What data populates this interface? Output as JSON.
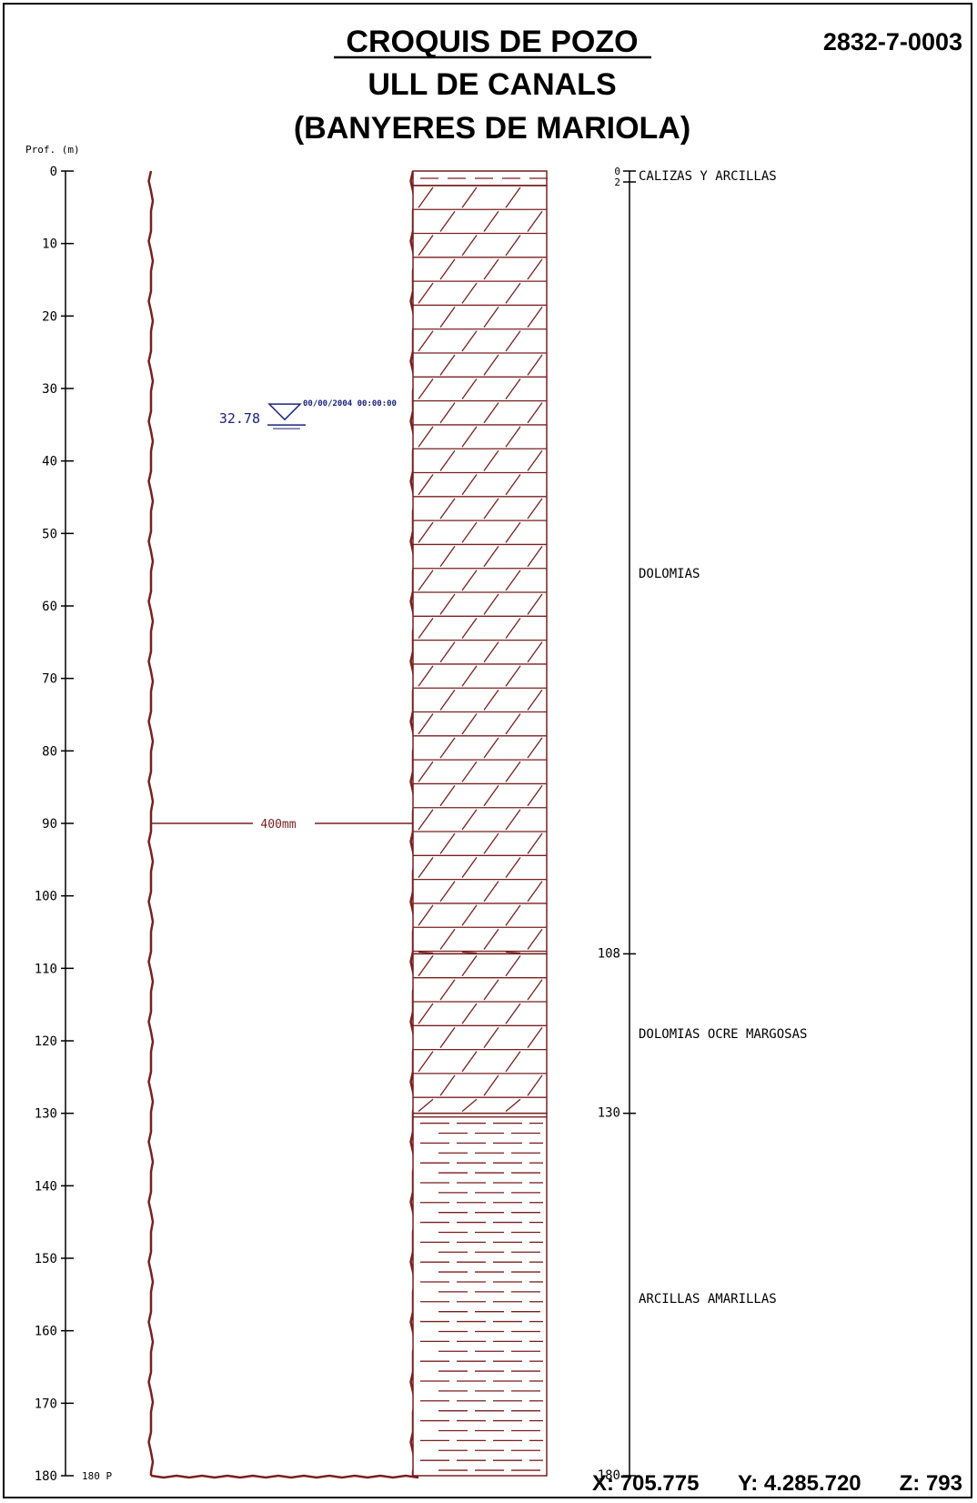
{
  "header": {
    "title_line1": "CROQUIS DE POZO",
    "title_line2": "ULL DE CANALS",
    "title_line3": "(BANYERES DE MARIOLA)",
    "code": "2832-7-0003"
  },
  "depth_axis": {
    "label": "Prof. (m)",
    "min": 0,
    "max": 180,
    "ticks": [
      0,
      10,
      20,
      30,
      40,
      50,
      60,
      70,
      80,
      90,
      100,
      110,
      120,
      130,
      140,
      150,
      160,
      170,
      180
    ],
    "end_label": "180 P"
  },
  "well": {
    "diameter_label": "400mm",
    "diameter_depth": 90,
    "water_level": {
      "value": "32.78",
      "depth": 32.78,
      "date": "00/00/2004 00:00:00"
    }
  },
  "lithology": [
    {
      "from": 0,
      "to": 2,
      "label": "CALIZAS Y ARCILLAS",
      "pattern": "dash",
      "label_depth": 0.8
    },
    {
      "from": 2,
      "to": 108,
      "label": "DOLOMIAS",
      "pattern": "dolomite",
      "label_depth": 55.5
    },
    {
      "from": 108,
      "to": 130,
      "label": "DOLOMIAS OCRE MARGOSAS",
      "pattern": "dolomite",
      "label_depth": 119
    },
    {
      "from": 130,
      "to": 180,
      "label": "ARCILLAS AMARILLAS",
      "pattern": "clay",
      "label_depth": 155.5
    }
  ],
  "lithology_ticks": [
    "0",
    "2",
    "108",
    "130",
    "180"
  ],
  "coordinates": {
    "x": "X: 705.775",
    "y": "Y: 4.285.720",
    "z": "Z: 793"
  },
  "colors": {
    "well": "#7a1f1f",
    "water": "#1a237e",
    "ink": "#000000"
  }
}
